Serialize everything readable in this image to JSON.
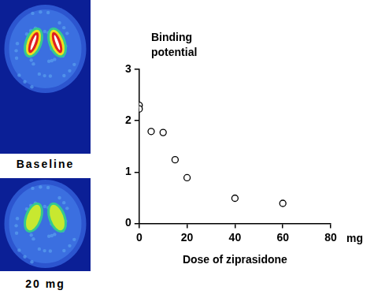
{
  "chart_data": {
    "type": "scatter",
    "xlabel": "Dose of ziprasidone",
    "ylabel": "Binding potential",
    "annotations": [
      "mg"
    ],
    "x": [
      0,
      0,
      5,
      10,
      15,
      20,
      40,
      60
    ],
    "values": [
      2.3,
      2.23,
      1.79,
      1.77,
      1.24,
      0.89,
      0.49,
      0.39
    ],
    "color": "#000000",
    "marker": "open_circle",
    "xlim": [
      0,
      80
    ],
    "xticks": [
      0,
      20,
      40,
      60,
      80
    ],
    "ylim": [
      0,
      3
    ],
    "yticks": [
      0,
      1,
      2,
      3
    ],
    "grid": false
  },
  "images": [
    {
      "label": "Baseline"
    },
    {
      "label": "20 mg"
    }
  ]
}
